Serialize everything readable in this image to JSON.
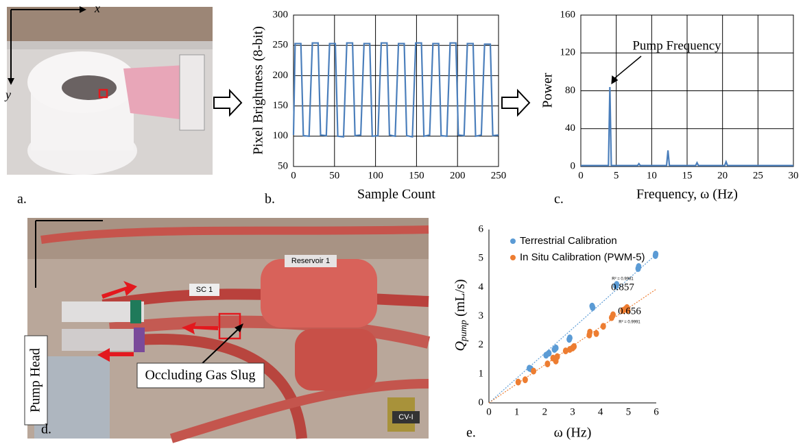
{
  "chart_data": [
    {
      "type": "line",
      "y_label": "Pixel Brightness (8-bit)",
      "x_label": "Sample Count",
      "x": [
        0,
        2,
        9,
        12,
        19,
        23,
        30,
        33,
        40,
        44,
        51,
        54,
        61,
        65,
        72,
        75,
        82,
        86,
        93,
        96,
        103,
        107,
        114,
        117,
        124,
        128,
        135,
        138,
        145,
        149,
        156,
        159,
        166,
        170,
        177,
        180,
        187,
        191,
        198,
        201,
        208,
        212,
        219,
        222,
        229,
        233,
        240,
        243,
        250
      ],
      "series": [
        {
          "color": "#4a7ebb",
          "values": [
            102,
            253,
            253,
            101,
            100,
            254,
            254,
            102,
            101,
            253,
            253,
            100,
            99,
            254,
            254,
            101,
            102,
            253,
            253,
            100,
            101,
            254,
            254,
            102,
            100,
            253,
            253,
            101,
            99,
            254,
            254,
            100,
            102,
            253,
            253,
            101,
            100,
            254,
            254,
            102,
            101,
            253,
            253,
            100,
            102,
            252,
            252,
            101,
            102
          ]
        }
      ],
      "xlim": [
        0,
        250
      ],
      "xticks": [
        0,
        50,
        100,
        150,
        200,
        250
      ],
      "ylim": [
        50,
        300
      ],
      "yticks": [
        50,
        100,
        150,
        200,
        250,
        300
      ],
      "grid": true
    },
    {
      "type": "line",
      "y_label": "Power",
      "x_label": "Frequency, ω (Hz)",
      "annotation": "Pump Frequency",
      "x": [
        0,
        3.9,
        4.1,
        4.3,
        8.0,
        8.2,
        8.4,
        12.1,
        12.3,
        12.5,
        16.2,
        16.4,
        16.6,
        20.3,
        20.5,
        20.7,
        30
      ],
      "series": [
        {
          "color": "#4a7ebb",
          "values": [
            1,
            1,
            84,
            1,
            1,
            3,
            1,
            1,
            17,
            1,
            1,
            4,
            1,
            1,
            5,
            1,
            1
          ]
        }
      ],
      "xlim": [
        0,
        30
      ],
      "xticks": [
        0,
        5,
        10,
        15,
        20,
        25,
        30
      ],
      "ylim": [
        0,
        160
      ],
      "yticks": [
        0,
        40,
        80,
        120,
        160
      ],
      "grid": true
    },
    {
      "type": "scatter",
      "y_label": "Q",
      "y_label_sub": "pump",
      "y_label_unit": "(mL/s)",
      "x_label": "ω (Hz)",
      "series": [
        {
          "name": "Terrestrial Calibration",
          "color": "#5b9bd5",
          "trend_slope": 0.857,
          "trend_label": "R² = 0.9981",
          "x": [
            1.45,
            1.5,
            2.05,
            2.15,
            2.35,
            2.4,
            2.88,
            2.9,
            3.7,
            3.72,
            4.55,
            4.58,
            5.35,
            5.37,
            5.97,
            5.98
          ],
          "values": [
            1.2,
            1.18,
            1.65,
            1.72,
            1.85,
            1.9,
            2.2,
            2.25,
            3.35,
            3.3,
            4.05,
            4.1,
            4.65,
            4.72,
            5.1,
            5.15
          ]
        },
        {
          "name": "In Situ Calibration (PWM-5)",
          "color": "#ed7d31",
          "trend_slope": 0.656,
          "trend_label": "R² = 0.9991",
          "x": [
            1.05,
            1.3,
            1.6,
            2.1,
            2.3,
            2.4,
            2.45,
            2.75,
            2.9,
            3.0,
            3.05,
            3.6,
            3.62,
            3.85,
            4.1,
            4.4,
            4.45,
            4.8,
            4.9,
            4.95,
            4.98
          ],
          "values": [
            0.72,
            0.8,
            1.1,
            1.35,
            1.55,
            1.45,
            1.6,
            1.8,
            1.85,
            1.9,
            1.95,
            2.35,
            2.45,
            2.4,
            2.65,
            2.95,
            3.05,
            3.2,
            3.25,
            3.3,
            3.2
          ]
        }
      ],
      "xlim": [
        0,
        6
      ],
      "xticks": [
        0,
        1,
        2,
        3,
        4,
        5,
        6
      ],
      "ylim": [
        0,
        6
      ],
      "yticks": [
        0,
        1,
        2,
        3,
        4,
        5,
        6
      ],
      "grid": false
    }
  ],
  "panels": {
    "labels": [
      "a.",
      "b.",
      "c.",
      "d.",
      "e."
    ],
    "photo_a": {
      "x_axis": "x",
      "y_axis": "y"
    },
    "photo_d": {
      "pump_head": "Pump Head",
      "gas_slug": "Occluding Gas Slug",
      "sc": "SC 1",
      "reservoir": "Reservoir 1",
      "cv": "CV-I"
    }
  }
}
